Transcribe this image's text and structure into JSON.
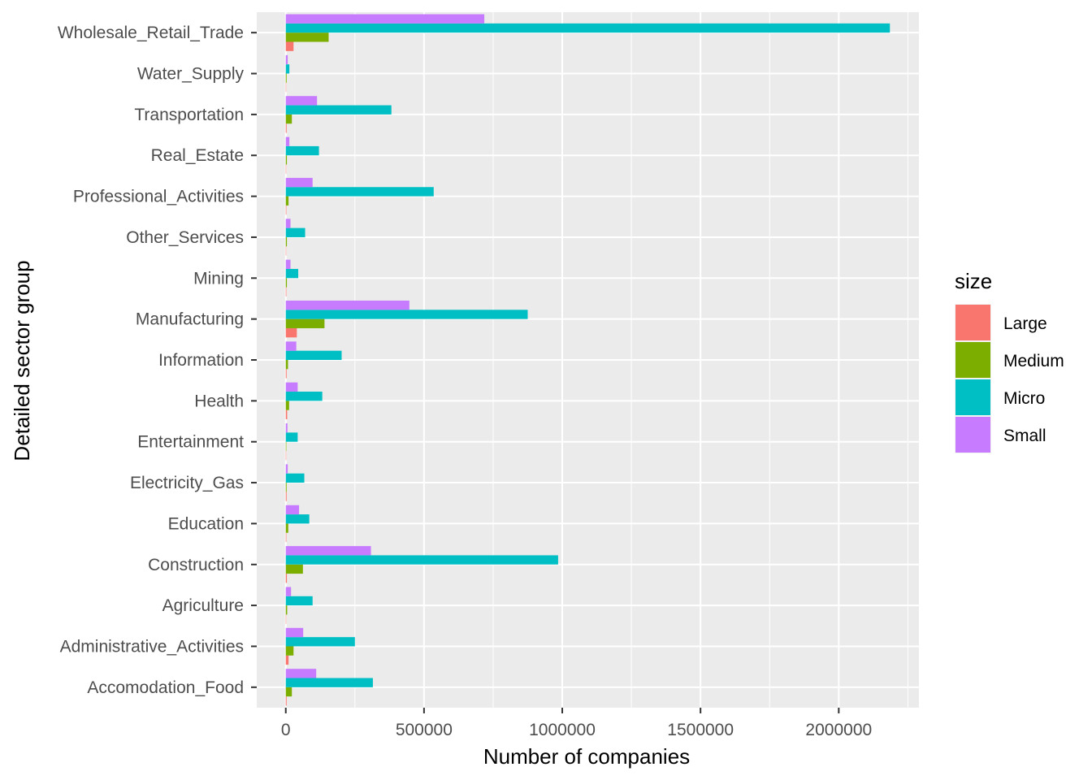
{
  "chart_data": {
    "type": "bar",
    "orientation": "horizontal",
    "title": "",
    "xlabel": "Number of companies",
    "ylabel": "Detailed sector group",
    "xlim": [
      -105000,
      2290000
    ],
    "x_ticks": [
      0,
      500000,
      1000000,
      1500000,
      2000000
    ],
    "x_tick_labels": [
      "0",
      "500000",
      "1000000",
      "1500000",
      "2000000"
    ],
    "grid": true,
    "categories": [
      "Wholesale_Retail_Trade",
      "Water_Supply",
      "Transportation",
      "Real_Estate",
      "Professional_Activities",
      "Other_Services",
      "Mining",
      "Manufacturing",
      "Information",
      "Health",
      "Entertainment",
      "Electricity_Gas",
      "Education",
      "Construction",
      "Agriculture",
      "Administrative_Activities",
      "Accomodation_Food"
    ],
    "series": [
      {
        "name": "Large",
        "color": "#F8766D",
        "values": [
          28000,
          1000,
          3000,
          1000,
          2000,
          1000,
          2000,
          40000,
          3000,
          5000,
          1000,
          3000,
          2000,
          4000,
          1000,
          10000,
          3000
        ]
      },
      {
        "name": "Medium",
        "color": "#7CAE00",
        "values": [
          155000,
          3000,
          22000,
          4000,
          10000,
          4000,
          4000,
          140000,
          8000,
          12000,
          2000,
          3000,
          9000,
          62000,
          5000,
          28000,
          22000
        ]
      },
      {
        "name": "Micro",
        "color": "#00BFC4",
        "values": [
          2185000,
          13000,
          382000,
          120000,
          535000,
          70000,
          45000,
          875000,
          202000,
          132000,
          43000,
          67000,
          85000,
          985000,
          97000,
          250000,
          315000
        ]
      },
      {
        "name": "Small",
        "color": "#C77CFF",
        "values": [
          718000,
          7000,
          113000,
          13000,
          97000,
          17000,
          17000,
          447000,
          38000,
          43000,
          6000,
          7000,
          48000,
          308000,
          19000,
          63000,
          110000
        ]
      }
    ],
    "legend": {
      "title": "size",
      "position": "right",
      "entries": [
        "Large",
        "Medium",
        "Micro",
        "Small"
      ]
    }
  }
}
